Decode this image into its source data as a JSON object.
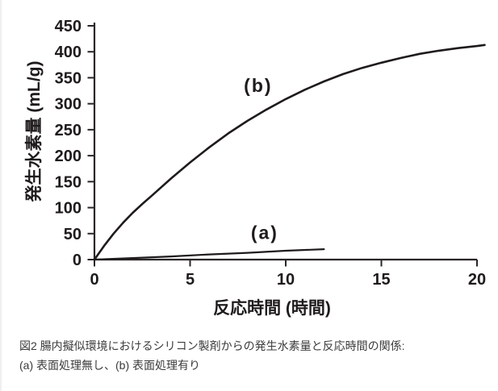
{
  "caption": {
    "line1": "図2 腸内擬似環境におけるシリコン製剤からの発生水素量と反応時間の関係:",
    "line2": "(a) 表面処理無し、(b) 表面処理有り"
  },
  "chart_data": {
    "type": "line",
    "title": "",
    "xlabel": "反応時間 (時間)",
    "ylabel": "発生水素量 (mL/g)",
    "xlim": [
      0,
      20
    ],
    "ylim": [
      0,
      450
    ],
    "x_ticks": [
      0,
      5,
      10,
      15,
      20
    ],
    "y_ticks": [
      0,
      50,
      100,
      150,
      200,
      250,
      300,
      350,
      400,
      450
    ],
    "grid": false,
    "line_color": "#1f1b1c",
    "axis_color": "#2a2627",
    "series": [
      {
        "key": "b",
        "name": "(b) 表面処理有り",
        "x": [
          0,
          0.5,
          1,
          1.5,
          2,
          2.5,
          3,
          4,
          5,
          6,
          7,
          8,
          9,
          10,
          11,
          12,
          13,
          14,
          15,
          16,
          17,
          18,
          19,
          20,
          20.4
        ],
        "y": [
          0,
          26,
          50,
          71,
          90,
          107,
          123,
          156,
          187,
          216,
          243,
          267,
          289,
          309,
          327,
          343,
          357,
          369,
          379,
          388,
          396,
          402,
          407,
          411,
          413
        ],
        "stroke_width": 2.6
      },
      {
        "key": "a",
        "name": "(a) 表面処理無し",
        "x": [
          0,
          2,
          4,
          6,
          8,
          10,
          12
        ],
        "y": [
          0,
          3,
          6,
          10,
          13,
          17,
          20
        ],
        "stroke_width": 2.2
      }
    ],
    "annotations": [
      {
        "key": "b",
        "text": "(b)",
        "x": 8.56,
        "y": 335
      },
      {
        "key": "a",
        "text": "(a)",
        "x": 8.9,
        "y": 52
      }
    ]
  }
}
